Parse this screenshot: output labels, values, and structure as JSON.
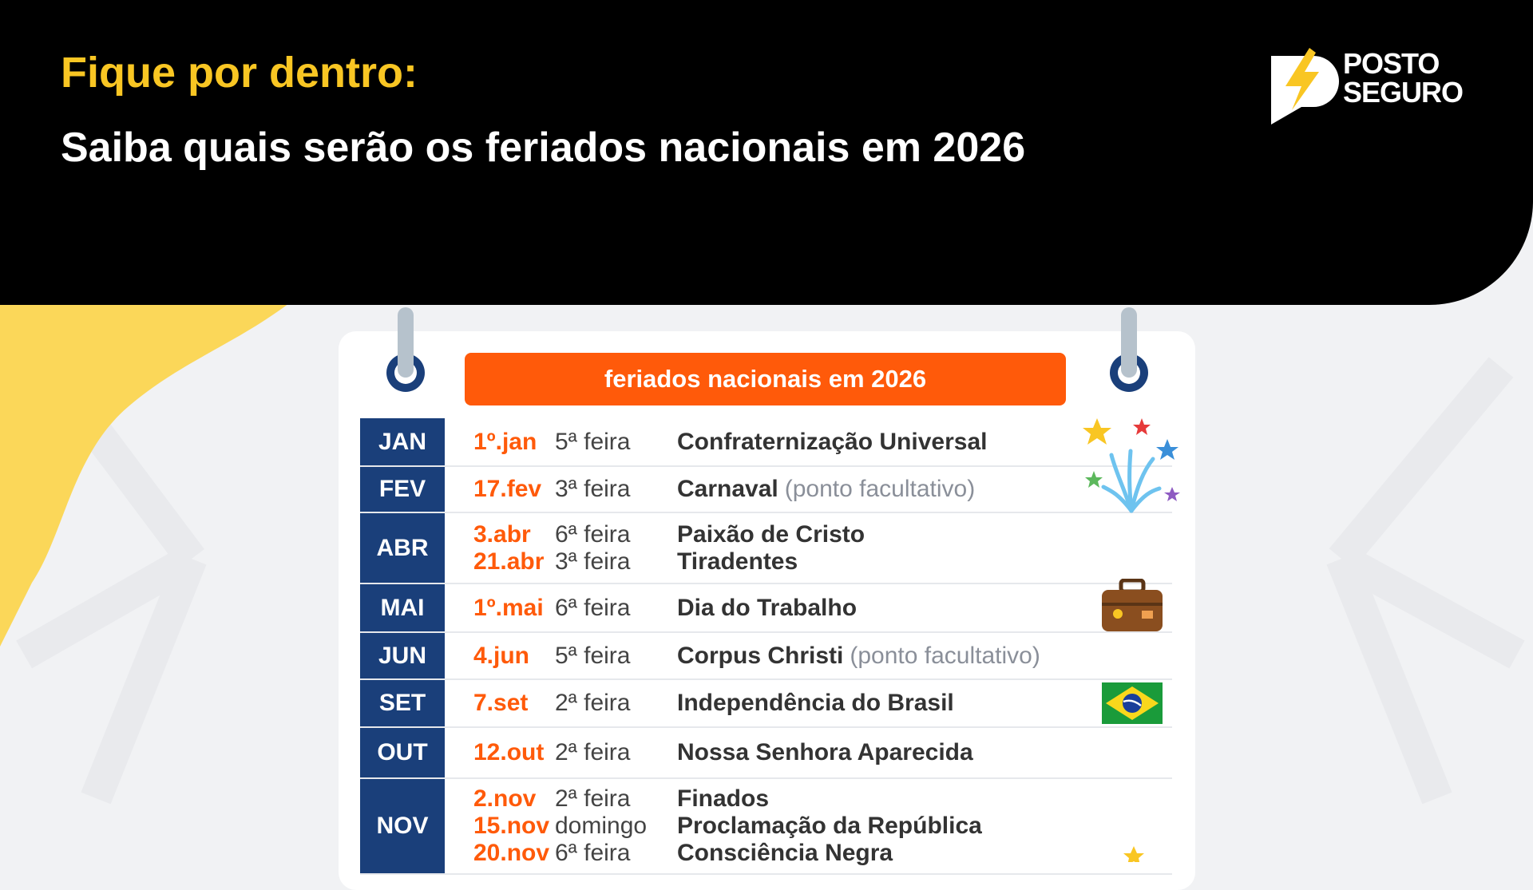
{
  "header": {
    "kicker": "Fique por dentro:",
    "title": "Saiba quais serão os feriados nacionais em 2026"
  },
  "logo": {
    "line1": "POSTO",
    "line2": "SEGURO"
  },
  "calendar": {
    "banner": "feriados nacionais em 2026",
    "rows": [
      {
        "month": "JAN",
        "items": [
          {
            "date": "1º.jan",
            "weekday": "5ª feira",
            "name": "Confraternização Universal",
            "note": ""
          }
        ]
      },
      {
        "month": "FEV",
        "items": [
          {
            "date": "17.fev",
            "weekday": "3ª feira",
            "name": "Carnaval",
            "note": "(ponto facultativo)"
          }
        ]
      },
      {
        "month": "ABR",
        "items": [
          {
            "date": "3.abr",
            "weekday": "6ª feira",
            "name": "Paixão de Cristo",
            "note": ""
          },
          {
            "date": "21.abr",
            "weekday": "3ª feira",
            "name": "Tiradentes",
            "note": ""
          }
        ]
      },
      {
        "month": "MAI",
        "items": [
          {
            "date": "1º.mai",
            "weekday": "6ª feira",
            "name": "Dia do Trabalho",
            "note": ""
          }
        ]
      },
      {
        "month": "JUN",
        "items": [
          {
            "date": "4.jun",
            "weekday": "5ª feira",
            "name": "Corpus Christi",
            "note": "(ponto facultativo)"
          }
        ]
      },
      {
        "month": "SET",
        "items": [
          {
            "date": "7.set",
            "weekday": "2ª feira",
            "name": "Independência do Brasil",
            "note": ""
          }
        ]
      },
      {
        "month": "OUT",
        "items": [
          {
            "date": "12.out",
            "weekday": "2ª feira",
            "name": "Nossa Senhora Aparecida",
            "note": ""
          }
        ]
      },
      {
        "month": "NOV",
        "items": [
          {
            "date": "2.nov",
            "weekday": "2ª feira",
            "name": "Finados",
            "note": ""
          },
          {
            "date": "15.nov",
            "weekday": "domingo",
            "name": "Proclamação da República",
            "note": ""
          },
          {
            "date": "20.nov",
            "weekday": "6ª feira",
            "name": "Consciência Negra",
            "note": ""
          }
        ]
      }
    ]
  },
  "icons": [
    "fireworks-icon",
    "briefcase-icon",
    "brazil-flag-icon",
    "star-icon"
  ],
  "colors": {
    "accent_yellow": "#f9c623",
    "orange": "#ff5a0a",
    "navy": "#1a3f7a",
    "header_bg": "#000000"
  }
}
